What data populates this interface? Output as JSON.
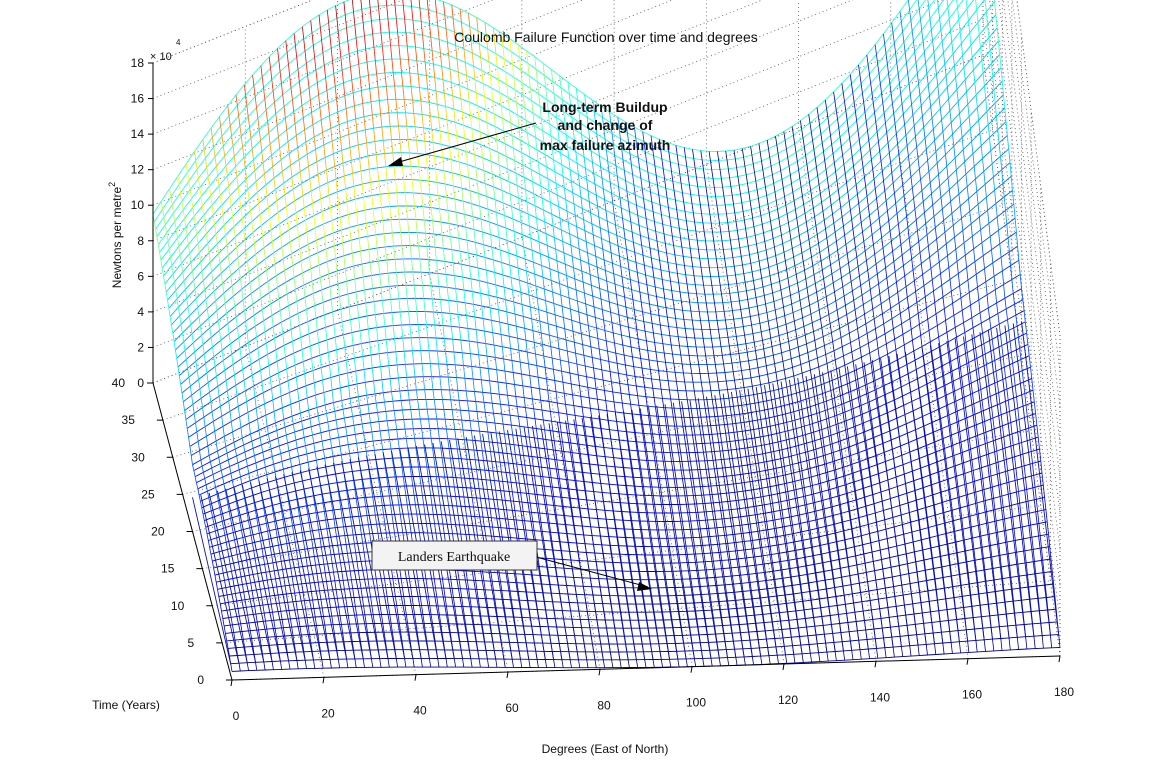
{
  "chart_data": {
    "type": "surface",
    "title": "Coulomb Failure Function over time and degrees",
    "xlabel": "Degrees (East of North)",
    "ylabel": "Time (Years)",
    "zlabel": "Newtons per metre",
    "zlabel_sup": "2",
    "z_exponent_label": "× 10",
    "z_exponent": "4",
    "x_range": [
      0,
      180
    ],
    "y_range": [
      0,
      40
    ],
    "z_range": [
      0,
      180000
    ],
    "x_ticks": [
      0,
      20,
      40,
      60,
      80,
      100,
      120,
      140,
      160,
      180
    ],
    "y_ticks": [
      0,
      5,
      10,
      15,
      20,
      25,
      30,
      35,
      40
    ],
    "z_ticks": [
      0,
      2,
      4,
      6,
      8,
      10,
      12,
      14,
      16,
      18
    ],
    "grid": true,
    "colormap": "jet",
    "surface_samples": {
      "time_years": [
        0,
        20,
        40
      ],
      "crest_azimuth_deg": [
        15,
        35,
        42
      ],
      "peak_value": [
        5200,
        56000,
        172000
      ]
    },
    "event_year": 20,
    "annotations": [
      {
        "id": "buildup",
        "lines": [
          "Long-term Buildup",
          "and change of",
          "max failure azimuth"
        ]
      },
      {
        "id": "landers",
        "text": "Landers Earthquake"
      }
    ]
  }
}
